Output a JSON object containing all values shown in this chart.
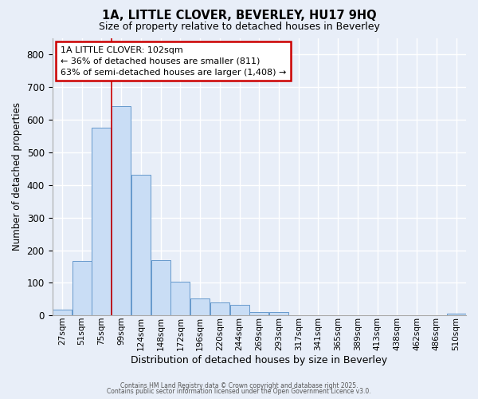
{
  "title1": "1A, LITTLE CLOVER, BEVERLEY, HU17 9HQ",
  "title2": "Size of property relative to detached houses in Beverley",
  "xlabel": "Distribution of detached houses by size in Beverley",
  "ylabel": "Number of detached properties",
  "bar_labels": [
    "27sqm",
    "51sqm",
    "75sqm",
    "99sqm",
    "124sqm",
    "148sqm",
    "172sqm",
    "196sqm",
    "220sqm",
    "244sqm",
    "269sqm",
    "293sqm",
    "317sqm",
    "341sqm",
    "365sqm",
    "389sqm",
    "413sqm",
    "438sqm",
    "462sqm",
    "486sqm",
    "510sqm"
  ],
  "bar_values": [
    18,
    168,
    575,
    642,
    430,
    170,
    103,
    52,
    40,
    32,
    12,
    10,
    0,
    0,
    0,
    0,
    0,
    0,
    0,
    0,
    7
  ],
  "bar_color": "#c9ddf5",
  "bar_edgecolor": "#6699cc",
  "vline_x": 2.5,
  "vline_color": "#cc0000",
  "annotation_text": "1A LITTLE CLOVER: 102sqm\n← 36% of detached houses are smaller (811)\n63% of semi-detached houses are larger (1,408) →",
  "annotation_box_facecolor": "#ffffff",
  "annotation_box_edgecolor": "#cc0000",
  "ylim": [
    0,
    850
  ],
  "yticks": [
    0,
    100,
    200,
    300,
    400,
    500,
    600,
    700,
    800
  ],
  "bg_color": "#e8eef8",
  "grid_color": "#ffffff",
  "footer1": "Contains HM Land Registry data © Crown copyright and database right 2025.",
  "footer2": "Contains public sector information licensed under the Open Government Licence v3.0."
}
